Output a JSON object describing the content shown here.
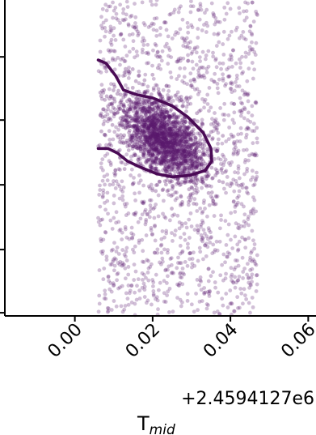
{
  "chart_data": {
    "type": "scatter",
    "x_axis": {
      "ticks": [
        0.0,
        0.02,
        0.04,
        0.06
      ],
      "tick_labels": [
        "0.00",
        "0.02",
        "0.04",
        "0.06"
      ],
      "offset_text": "+2.4594127e6",
      "label_main": "T",
      "label_sub": "mid",
      "range": [
        -0.018,
        0.062
      ]
    },
    "y_axis": {
      "tick_count": 5,
      "range": [
        0,
        1
      ]
    },
    "colors": {
      "points": "#5a1a6e",
      "contour": "#4a0a55",
      "axes": "#000000"
    },
    "samples": {
      "x_uniform_range": [
        0.006,
        0.047
      ],
      "x_center": 0.023,
      "x_spread": 0.0055,
      "y_center": 0.56,
      "y_spread": 0.07,
      "correlation": -0.55,
      "background_count": 1500,
      "core_count": 1800
    },
    "contour": [
      [
        0.006,
        0.81
      ],
      [
        0.008,
        0.8
      ],
      [
        0.0105,
        0.76
      ],
      [
        0.0125,
        0.715
      ],
      [
        0.016,
        0.7
      ],
      [
        0.02,
        0.69
      ],
      [
        0.025,
        0.665
      ],
      [
        0.029,
        0.63
      ],
      [
        0.033,
        0.58
      ],
      [
        0.035,
        0.53
      ],
      [
        0.0352,
        0.49
      ],
      [
        0.0335,
        0.46
      ],
      [
        0.0295,
        0.445
      ],
      [
        0.025,
        0.44
      ],
      [
        0.021,
        0.45
      ],
      [
        0.017,
        0.47
      ],
      [
        0.0135,
        0.49
      ],
      [
        0.011,
        0.515
      ],
      [
        0.0085,
        0.53
      ],
      [
        0.006,
        0.53
      ]
    ]
  }
}
